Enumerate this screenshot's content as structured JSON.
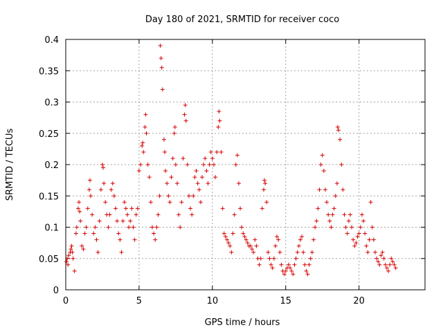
{
  "chart_data": {
    "type": "scatter",
    "title": "Day 180 of 2021, SRMTID for receiver coco",
    "xlabel": "GPS time / hours",
    "ylabel": "SRMTID / TECUs",
    "xlim": [
      0,
      24.5
    ],
    "ylim": [
      0,
      0.4
    ],
    "xticks": [
      0,
      5,
      10,
      15,
      20
    ],
    "xtick_labels": [
      "0",
      "5",
      "10",
      "15",
      "20"
    ],
    "yticks": [
      0,
      0.05,
      0.1,
      0.15,
      0.2,
      0.25,
      0.3,
      0.35,
      0.4
    ],
    "ytick_labels": [
      "0",
      "0.05",
      "0.1",
      "0.15",
      "0.2",
      "0.25",
      "0.3",
      "0.35",
      "0.4"
    ],
    "grid": true,
    "marker": "+",
    "marker_color": "#d40000",
    "series": [
      {
        "name": "SRMTID",
        "points": [
          [
            0.05,
            0.045
          ],
          [
            0.1,
            0.05
          ],
          [
            0.15,
            0.04
          ],
          [
            0.2,
            0.055
          ],
          [
            0.3,
            0.06
          ],
          [
            0.35,
            0.065
          ],
          [
            0.4,
            0.07
          ],
          [
            0.45,
            0.06
          ],
          [
            0.5,
            0.05
          ],
          [
            0.6,
            0.03
          ],
          [
            0.7,
            0.09
          ],
          [
            0.75,
            0.1
          ],
          [
            0.85,
            0.13
          ],
          [
            0.9,
            0.14
          ],
          [
            0.95,
            0.125
          ],
          [
            1.0,
            0.11
          ],
          [
            1.1,
            0.07
          ],
          [
            1.2,
            0.065
          ],
          [
            1.3,
            0.09
          ],
          [
            1.4,
            0.1
          ],
          [
            1.5,
            0.13
          ],
          [
            1.6,
            0.16
          ],
          [
            1.65,
            0.175
          ],
          [
            1.7,
            0.15
          ],
          [
            1.8,
            0.12
          ],
          [
            1.9,
            0.09
          ],
          [
            2.0,
            0.1
          ],
          [
            2.1,
            0.08
          ],
          [
            2.2,
            0.06
          ],
          [
            2.3,
            0.11
          ],
          [
            2.4,
            0.16
          ],
          [
            2.5,
            0.2
          ],
          [
            2.55,
            0.195
          ],
          [
            2.6,
            0.17
          ],
          [
            2.7,
            0.14
          ],
          [
            2.8,
            0.12
          ],
          [
            2.9,
            0.1
          ],
          [
            3.0,
            0.12
          ],
          [
            3.1,
            0.16
          ],
          [
            3.2,
            0.17
          ],
          [
            3.3,
            0.15
          ],
          [
            3.4,
            0.13
          ],
          [
            3.5,
            0.11
          ],
          [
            3.6,
            0.09
          ],
          [
            3.7,
            0.08
          ],
          [
            3.8,
            0.06
          ],
          [
            3.9,
            0.11
          ],
          [
            4.0,
            0.14
          ],
          [
            4.1,
            0.13
          ],
          [
            4.2,
            0.12
          ],
          [
            4.3,
            0.1
          ],
          [
            4.4,
            0.11
          ],
          [
            4.5,
            0.13
          ],
          [
            4.6,
            0.1
          ],
          [
            4.7,
            0.08
          ],
          [
            4.8,
            0.12
          ],
          [
            4.9,
            0.13
          ],
          [
            5.0,
            0.19
          ],
          [
            5.1,
            0.2
          ],
          [
            5.2,
            0.23
          ],
          [
            5.25,
            0.235
          ],
          [
            5.3,
            0.22
          ],
          [
            5.4,
            0.26
          ],
          [
            5.45,
            0.28
          ],
          [
            5.5,
            0.25
          ],
          [
            5.6,
            0.2
          ],
          [
            5.7,
            0.18
          ],
          [
            5.8,
            0.14
          ],
          [
            5.9,
            0.1
          ],
          [
            6.0,
            0.09
          ],
          [
            6.1,
            0.08
          ],
          [
            6.2,
            0.1
          ],
          [
            6.3,
            0.12
          ],
          [
            6.4,
            0.15
          ],
          [
            6.45,
            0.39
          ],
          [
            6.5,
            0.37
          ],
          [
            6.55,
            0.355
          ],
          [
            6.6,
            0.32
          ],
          [
            6.7,
            0.24
          ],
          [
            6.75,
            0.22
          ],
          [
            6.8,
            0.19
          ],
          [
            6.9,
            0.17
          ],
          [
            7.0,
            0.15
          ],
          [
            7.1,
            0.14
          ],
          [
            7.2,
            0.18
          ],
          [
            7.3,
            0.21
          ],
          [
            7.4,
            0.25
          ],
          [
            7.45,
            0.26
          ],
          [
            7.5,
            0.2
          ],
          [
            7.6,
            0.17
          ],
          [
            7.7,
            0.12
          ],
          [
            7.8,
            0.1
          ],
          [
            7.9,
            0.14
          ],
          [
            8.0,
            0.21
          ],
          [
            8.1,
            0.28
          ],
          [
            8.15,
            0.295
          ],
          [
            8.2,
            0.27
          ],
          [
            8.3,
            0.2
          ],
          [
            8.4,
            0.15
          ],
          [
            8.5,
            0.13
          ],
          [
            8.6,
            0.12
          ],
          [
            8.7,
            0.15
          ],
          [
            8.8,
            0.18
          ],
          [
            8.9,
            0.19
          ],
          [
            9.0,
            0.17
          ],
          [
            9.1,
            0.16
          ],
          [
            9.2,
            0.14
          ],
          [
            9.3,
            0.18
          ],
          [
            9.4,
            0.2
          ],
          [
            9.5,
            0.21
          ],
          [
            9.6,
            0.19
          ],
          [
            9.7,
            0.17
          ],
          [
            9.8,
            0.2
          ],
          [
            9.9,
            0.22
          ],
          [
            10.0,
            0.21
          ],
          [
            10.1,
            0.2
          ],
          [
            10.2,
            0.18
          ],
          [
            10.3,
            0.22
          ],
          [
            10.4,
            0.26
          ],
          [
            10.45,
            0.285
          ],
          [
            10.5,
            0.27
          ],
          [
            10.6,
            0.22
          ],
          [
            10.7,
            0.13
          ],
          [
            10.8,
            0.09
          ],
          [
            10.9,
            0.085
          ],
          [
            11.0,
            0.08
          ],
          [
            11.1,
            0.075
          ],
          [
            11.2,
            0.07
          ],
          [
            11.3,
            0.06
          ],
          [
            11.4,
            0.09
          ],
          [
            11.5,
            0.12
          ],
          [
            11.6,
            0.2
          ],
          [
            11.7,
            0.215
          ],
          [
            11.8,
            0.17
          ],
          [
            11.9,
            0.13
          ],
          [
            12.0,
            0.1
          ],
          [
            12.1,
            0.09
          ],
          [
            12.2,
            0.085
          ],
          [
            12.3,
            0.08
          ],
          [
            12.4,
            0.075
          ],
          [
            12.5,
            0.07
          ],
          [
            12.6,
            0.07
          ],
          [
            12.7,
            0.065
          ],
          [
            12.8,
            0.06
          ],
          [
            12.9,
            0.08
          ],
          [
            13.0,
            0.07
          ],
          [
            13.1,
            0.05
          ],
          [
            13.2,
            0.04
          ],
          [
            13.3,
            0.05
          ],
          [
            13.4,
            0.13
          ],
          [
            13.5,
            0.16
          ],
          [
            13.55,
            0.175
          ],
          [
            13.6,
            0.17
          ],
          [
            13.7,
            0.14
          ],
          [
            13.8,
            0.06
          ],
          [
            13.9,
            0.05
          ],
          [
            14.0,
            0.04
          ],
          [
            14.1,
            0.035
          ],
          [
            14.2,
            0.05
          ],
          [
            14.3,
            0.07
          ],
          [
            14.4,
            0.085
          ],
          [
            14.5,
            0.08
          ],
          [
            14.6,
            0.06
          ],
          [
            14.7,
            0.04
          ],
          [
            14.8,
            0.03
          ],
          [
            14.9,
            0.025
          ],
          [
            15.0,
            0.03
          ],
          [
            15.1,
            0.035
          ],
          [
            15.2,
            0.04
          ],
          [
            15.3,
            0.035
          ],
          [
            15.4,
            0.03
          ],
          [
            15.5,
            0.025
          ],
          [
            15.6,
            0.04
          ],
          [
            15.7,
            0.05
          ],
          [
            15.8,
            0.06
          ],
          [
            15.9,
            0.07
          ],
          [
            16.0,
            0.08
          ],
          [
            16.1,
            0.085
          ],
          [
            16.2,
            0.06
          ],
          [
            16.3,
            0.04
          ],
          [
            16.4,
            0.03
          ],
          [
            16.5,
            0.025
          ],
          [
            16.6,
            0.04
          ],
          [
            16.7,
            0.05
          ],
          [
            16.8,
            0.06
          ],
          [
            16.9,
            0.08
          ],
          [
            17.0,
            0.1
          ],
          [
            17.1,
            0.11
          ],
          [
            17.2,
            0.13
          ],
          [
            17.3,
            0.16
          ],
          [
            17.4,
            0.2
          ],
          [
            17.5,
            0.215
          ],
          [
            17.6,
            0.19
          ],
          [
            17.7,
            0.16
          ],
          [
            17.8,
            0.14
          ],
          [
            17.9,
            0.12
          ],
          [
            18.0,
            0.11
          ],
          [
            18.1,
            0.1
          ],
          [
            18.2,
            0.12
          ],
          [
            18.3,
            0.13
          ],
          [
            18.4,
            0.15
          ],
          [
            18.5,
            0.17
          ],
          [
            18.55,
            0.26
          ],
          [
            18.6,
            0.255
          ],
          [
            18.7,
            0.24
          ],
          [
            18.8,
            0.2
          ],
          [
            18.9,
            0.16
          ],
          [
            19.0,
            0.12
          ],
          [
            19.1,
            0.1
          ],
          [
            19.2,
            0.09
          ],
          [
            19.3,
            0.11
          ],
          [
            19.4,
            0.12
          ],
          [
            19.5,
            0.1
          ],
          [
            19.6,
            0.08
          ],
          [
            19.7,
            0.07
          ],
          [
            19.8,
            0.075
          ],
          [
            19.9,
            0.085
          ],
          [
            20.0,
            0.09
          ],
          [
            20.1,
            0.1
          ],
          [
            20.2,
            0.12
          ],
          [
            20.3,
            0.11
          ],
          [
            20.4,
            0.09
          ],
          [
            20.5,
            0.07
          ],
          [
            20.6,
            0.06
          ],
          [
            20.7,
            0.08
          ],
          [
            20.8,
            0.14
          ],
          [
            20.9,
            0.1
          ],
          [
            21.0,
            0.08
          ],
          [
            21.1,
            0.06
          ],
          [
            21.2,
            0.05
          ],
          [
            21.3,
            0.045
          ],
          [
            21.4,
            0.04
          ],
          [
            21.5,
            0.055
          ],
          [
            21.6,
            0.06
          ],
          [
            21.7,
            0.05
          ],
          [
            21.8,
            0.04
          ],
          [
            21.9,
            0.035
          ],
          [
            22.0,
            0.03
          ],
          [
            22.1,
            0.04
          ],
          [
            22.2,
            0.05
          ],
          [
            22.3,
            0.045
          ],
          [
            22.4,
            0.04
          ],
          [
            22.5,
            0.035
          ]
        ]
      }
    ]
  }
}
